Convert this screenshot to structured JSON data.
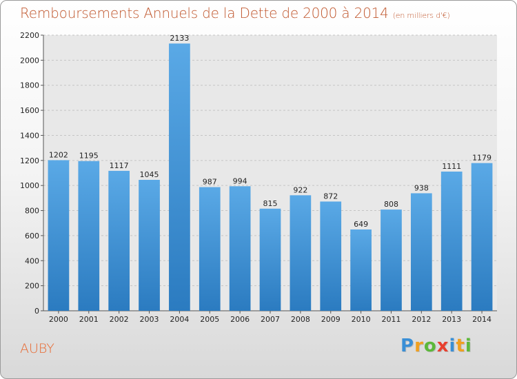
{
  "chart_data": {
    "type": "bar",
    "title": "Remboursements Annuels de la Dette de 2000 à 2014",
    "subtitle": "(en milliers d'€)",
    "categories": [
      "2000",
      "2001",
      "2002",
      "2003",
      "2004",
      "2005",
      "2006",
      "2007",
      "2008",
      "2009",
      "2010",
      "2011",
      "2012",
      "2013",
      "2014"
    ],
    "values": [
      1202,
      1195,
      1117,
      1045,
      2133,
      987,
      994,
      815,
      922,
      872,
      649,
      808,
      938,
      1111,
      1179
    ],
    "ylim": [
      0,
      2200
    ],
    "yticks": [
      0,
      200,
      400,
      600,
      800,
      1000,
      1200,
      1400,
      1600,
      1800,
      2000,
      2200
    ],
    "grid": true,
    "bar_color_top": "#5aa9e6",
    "bar_color_bottom": "#2b7bc0"
  },
  "place": "AUBY",
  "logo": {
    "letters": [
      "P",
      "r",
      "o",
      "x",
      "i",
      "t",
      "i"
    ],
    "colors": [
      "#3a8fd6",
      "#f0a020",
      "#5cb83a",
      "#e8402e",
      "#3a8fd6",
      "#f0a020",
      "#5cb83a"
    ]
  },
  "colors": {
    "title": "#c0572e",
    "place": "#e8672e"
  }
}
